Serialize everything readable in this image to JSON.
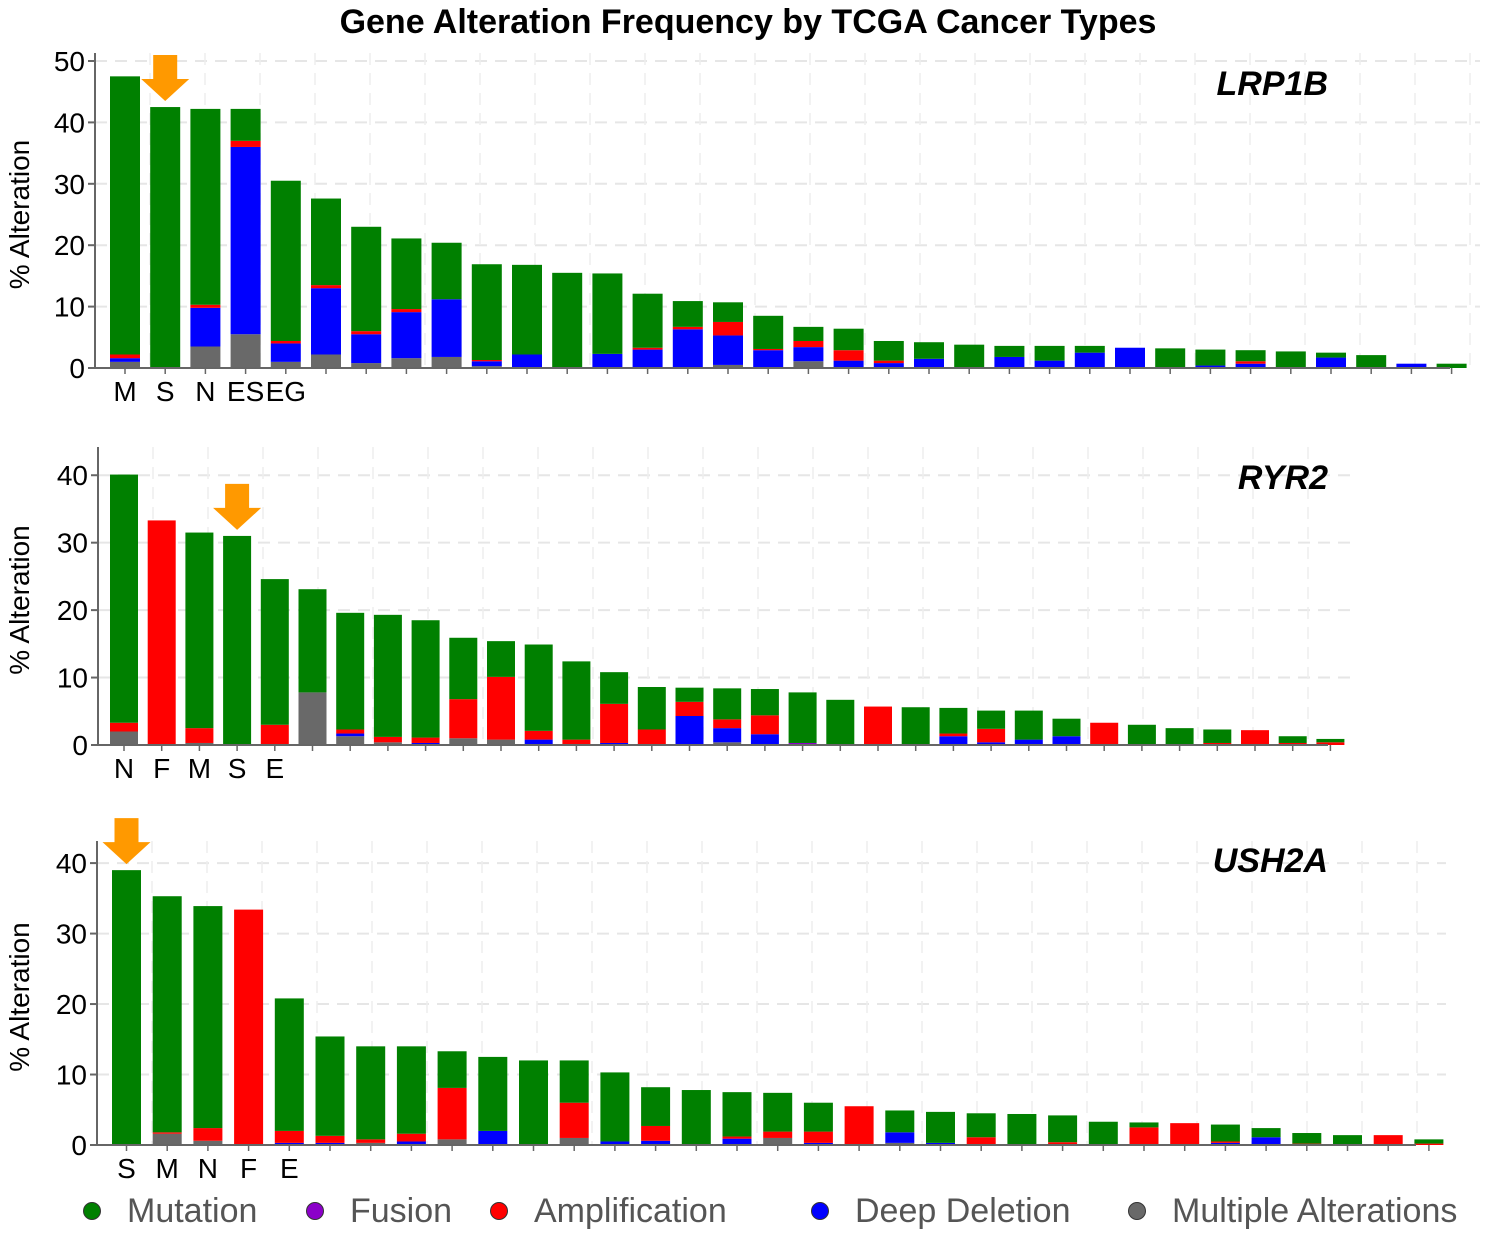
{
  "title": "Gene Alteration Frequency by TCGA Cancer Types",
  "colors": {
    "Mutation": "#008000",
    "Fusion": "#8B00C9",
    "Amplification": "#FF0000",
    "Deep Deletion": "#0000FF",
    "Multiple Alterations": "#696969",
    "arrow": "#FF9900"
  },
  "legend": [
    {
      "name": "Mutation",
      "color": "#008000"
    },
    {
      "name": "Fusion",
      "color": "#8B00C9"
    },
    {
      "name": "Amplification",
      "color": "#FF0000"
    },
    {
      "name": "Deep Deletion",
      "color": "#0000FF"
    },
    {
      "name": "Multiple Alterations",
      "color": "#696969"
    }
  ],
  "chart_data": [
    {
      "type": "bar",
      "stacked": true,
      "gene": "LRP1B",
      "ylabel": "% Alteration",
      "ylim": [
        0,
        50
      ],
      "yticks": [
        0,
        10,
        20,
        30,
        40,
        50
      ],
      "grid": true,
      "bar_labels": [
        "M",
        "S",
        "N",
        "ES",
        "EG"
      ],
      "arrow_bar": 1,
      "series_order": [
        "Multiple Alterations",
        "Deep Deletion",
        "Fusion",
        "Amplification",
        "Mutation"
      ],
      "bars": [
        {
          "Multiple Alterations": 1.0,
          "Deep Deletion": 0.6,
          "Amplification": 0.6,
          "Mutation": 45.3
        },
        {
          "Mutation": 42.5
        },
        {
          "Multiple Alterations": 3.5,
          "Deep Deletion": 6.3,
          "Amplification": 0.5,
          "Mutation": 31.9
        },
        {
          "Multiple Alterations": 5.5,
          "Deep Deletion": 30.5,
          "Amplification": 1.0,
          "Mutation": 5.2
        },
        {
          "Multiple Alterations": 1.0,
          "Deep Deletion": 3.0,
          "Amplification": 0.4,
          "Mutation": 26.1
        },
        {
          "Multiple Alterations": 2.2,
          "Deep Deletion": 10.8,
          "Amplification": 0.5,
          "Mutation": 14.1
        },
        {
          "Multiple Alterations": 0.8,
          "Deep Deletion": 4.7,
          "Amplification": 0.5,
          "Mutation": 17.0
        },
        {
          "Multiple Alterations": 1.6,
          "Deep Deletion": 7.5,
          "Amplification": 0.5,
          "Mutation": 11.5
        },
        {
          "Multiple Alterations": 1.8,
          "Deep Deletion": 9.4,
          "Mutation": 9.2
        },
        {
          "Multiple Alterations": 0.3,
          "Deep Deletion": 0.8,
          "Amplification": 0.2,
          "Mutation": 15.6
        },
        {
          "Deep Deletion": 2.2,
          "Mutation": 14.6
        },
        {
          "Mutation": 15.5
        },
        {
          "Deep Deletion": 2.3,
          "Mutation": 13.1
        },
        {
          "Deep Deletion": 3.0,
          "Amplification": 0.3,
          "Mutation": 8.8
        },
        {
          "Deep Deletion": 6.3,
          "Amplification": 0.4,
          "Mutation": 4.2
        },
        {
          "Multiple Alterations": 0.5,
          "Deep Deletion": 4.8,
          "Amplification": 2.2,
          "Mutation": 3.2
        },
        {
          "Deep Deletion": 2.9,
          "Amplification": 0.2,
          "Mutation": 5.4
        },
        {
          "Multiple Alterations": 1.1,
          "Deep Deletion": 2.3,
          "Amplification": 1.0,
          "Mutation": 2.3
        },
        {
          "Deep Deletion": 1.2,
          "Amplification": 1.7,
          "Mutation": 3.5
        },
        {
          "Deep Deletion": 0.8,
          "Amplification": 0.4,
          "Mutation": 3.2
        },
        {
          "Deep Deletion": 1.5,
          "Mutation": 2.7
        },
        {
          "Mutation": 3.8
        },
        {
          "Deep Deletion": 1.8,
          "Mutation": 1.8
        },
        {
          "Deep Deletion": 1.2,
          "Mutation": 2.4
        },
        {
          "Deep Deletion": 2.5,
          "Mutation": 1.1
        },
        {
          "Deep Deletion": 3.3
        },
        {
          "Mutation": 3.2
        },
        {
          "Deep Deletion": 0.4,
          "Mutation": 2.6
        },
        {
          "Deep Deletion": 0.7,
          "Amplification": 0.4,
          "Mutation": 1.8
        },
        {
          "Mutation": 2.7
        },
        {
          "Deep Deletion": 1.7,
          "Mutation": 0.8
        },
        {
          "Mutation": 2.1
        },
        {
          "Deep Deletion": 0.7
        },
        {
          "Mutation": 0.7
        }
      ]
    },
    {
      "type": "bar",
      "stacked": true,
      "gene": "RYR2",
      "ylabel": "% Alteration",
      "ylim": [
        0,
        43
      ],
      "yticks": [
        0,
        10,
        20,
        30,
        40
      ],
      "grid": true,
      "bar_labels": [
        "N",
        "F",
        "M",
        "S",
        "E"
      ],
      "arrow_bar": 3,
      "series_order": [
        "Multiple Alterations",
        "Deep Deletion",
        "Fusion",
        "Amplification",
        "Mutation"
      ],
      "bars": [
        {
          "Multiple Alterations": 2.0,
          "Amplification": 1.3,
          "Mutation": 36.8
        },
        {
          "Amplification": 33.3
        },
        {
          "Multiple Alterations": 0.3,
          "Amplification": 2.2,
          "Mutation": 29.0
        },
        {
          "Mutation": 31.0
        },
        {
          "Amplification": 3.0,
          "Mutation": 21.6
        },
        {
          "Multiple Alterations": 7.8,
          "Mutation": 15.3
        },
        {
          "Multiple Alterations": 1.3,
          "Deep Deletion": 0.4,
          "Amplification": 0.6,
          "Mutation": 17.3
        },
        {
          "Multiple Alterations": 0.4,
          "Amplification": 0.8,
          "Mutation": 18.1
        },
        {
          "Deep Deletion": 0.3,
          "Amplification": 0.8,
          "Mutation": 17.4
        },
        {
          "Multiple Alterations": 1.0,
          "Amplification": 5.8,
          "Mutation": 9.1
        },
        {
          "Multiple Alterations": 0.8,
          "Amplification": 9.3,
          "Mutation": 5.3
        },
        {
          "Deep Deletion": 0.8,
          "Amplification": 1.3,
          "Mutation": 12.8
        },
        {
          "Amplification": 0.8,
          "Mutation": 11.6
        },
        {
          "Deep Deletion": 0.3,
          "Amplification": 5.8,
          "Mutation": 4.7
        },
        {
          "Amplification": 2.3,
          "Mutation": 6.3
        },
        {
          "Deep Deletion": 4.3,
          "Amplification": 2.1,
          "Mutation": 2.1
        },
        {
          "Multiple Alterations": 0.4,
          "Deep Deletion": 2.1,
          "Amplification": 1.3,
          "Mutation": 4.6
        },
        {
          "Deep Deletion": 1.6,
          "Amplification": 2.8,
          "Mutation": 3.9
        },
        {
          "Fusion": 0.3,
          "Mutation": 7.5
        },
        {
          "Mutation": 6.7
        },
        {
          "Amplification": 5.7
        },
        {
          "Mutation": 5.6
        },
        {
          "Deep Deletion": 1.3,
          "Amplification": 0.4,
          "Mutation": 3.8
        },
        {
          "Deep Deletion": 0.4,
          "Amplification": 2.0,
          "Mutation": 2.7
        },
        {
          "Deep Deletion": 0.8,
          "Mutation": 4.3
        },
        {
          "Deep Deletion": 1.3,
          "Mutation": 2.6
        },
        {
          "Amplification": 3.3
        },
        {
          "Mutation": 3.0
        },
        {
          "Mutation": 2.5
        },
        {
          "Amplification": 0.3,
          "Mutation": 2.0
        },
        {
          "Amplification": 2.2
        },
        {
          "Amplification": 0.3,
          "Mutation": 1.0
        },
        {
          "Amplification": 0.4,
          "Mutation": 0.5
        }
      ]
    },
    {
      "type": "bar",
      "stacked": true,
      "gene": "USH2A",
      "ylabel": "% Alteration",
      "ylim": [
        0,
        42
      ],
      "yticks": [
        0,
        10,
        20,
        30,
        40
      ],
      "grid": true,
      "bar_labels": [
        "S",
        "M",
        "N",
        "F",
        "E"
      ],
      "arrow_bar": 0,
      "series_order": [
        "Multiple Alterations",
        "Deep Deletion",
        "Fusion",
        "Amplification",
        "Mutation"
      ],
      "bars": [
        {
          "Mutation": 39.0
        },
        {
          "Multiple Alterations": 1.6,
          "Amplification": 0.2,
          "Mutation": 33.5
        },
        {
          "Multiple Alterations": 0.6,
          "Amplification": 1.8,
          "Mutation": 31.5
        },
        {
          "Amplification": 33.4
        },
        {
          "Deep Deletion": 0.3,
          "Amplification": 1.7,
          "Mutation": 18.8
        },
        {
          "Deep Deletion": 0.3,
          "Amplification": 1.0,
          "Mutation": 14.1
        },
        {
          "Multiple Alterations": 0.3,
          "Amplification": 0.5,
          "Mutation": 13.2
        },
        {
          "Deep Deletion": 0.5,
          "Amplification": 1.1,
          "Mutation": 12.4
        },
        {
          "Multiple Alterations": 0.8,
          "Amplification": 7.3,
          "Mutation": 5.2
        },
        {
          "Deep Deletion": 2.0,
          "Mutation": 10.5
        },
        {
          "Mutation": 12.0
        },
        {
          "Multiple Alterations": 1.0,
          "Amplification": 5.0,
          "Mutation": 6.0
        },
        {
          "Deep Deletion": 0.5,
          "Mutation": 9.8
        },
        {
          "Deep Deletion": 0.6,
          "Amplification": 2.1,
          "Mutation": 5.5
        },
        {
          "Mutation": 7.8
        },
        {
          "Deep Deletion": 0.9,
          "Amplification": 0.3,
          "Mutation": 6.3
        },
        {
          "Multiple Alterations": 1.0,
          "Amplification": 0.9,
          "Mutation": 5.5
        },
        {
          "Deep Deletion": 0.3,
          "Amplification": 1.6,
          "Mutation": 4.1
        },
        {
          "Amplification": 5.5
        },
        {
          "Multiple Alterations": 0.3,
          "Deep Deletion": 1.5,
          "Mutation": 3.1
        },
        {
          "Deep Deletion": 0.3,
          "Mutation": 4.4
        },
        {
          "Amplification": 1.1,
          "Mutation": 3.4
        },
        {
          "Mutation": 4.4
        },
        {
          "Amplification": 0.4,
          "Mutation": 3.8
        },
        {
          "Mutation": 3.3
        },
        {
          "Amplification": 2.5,
          "Mutation": 0.7
        },
        {
          "Amplification": 3.1
        },
        {
          "Deep Deletion": 0.3,
          "Amplification": 0.2,
          "Mutation": 2.4
        },
        {
          "Deep Deletion": 1.1,
          "Mutation": 1.3
        },
        {
          "Amplification": 0.2,
          "Mutation": 1.5
        },
        {
          "Mutation": 1.4
        },
        {
          "Amplification": 1.4
        },
        {
          "Amplification": 0.2,
          "Mutation": 0.6
        }
      ]
    }
  ]
}
